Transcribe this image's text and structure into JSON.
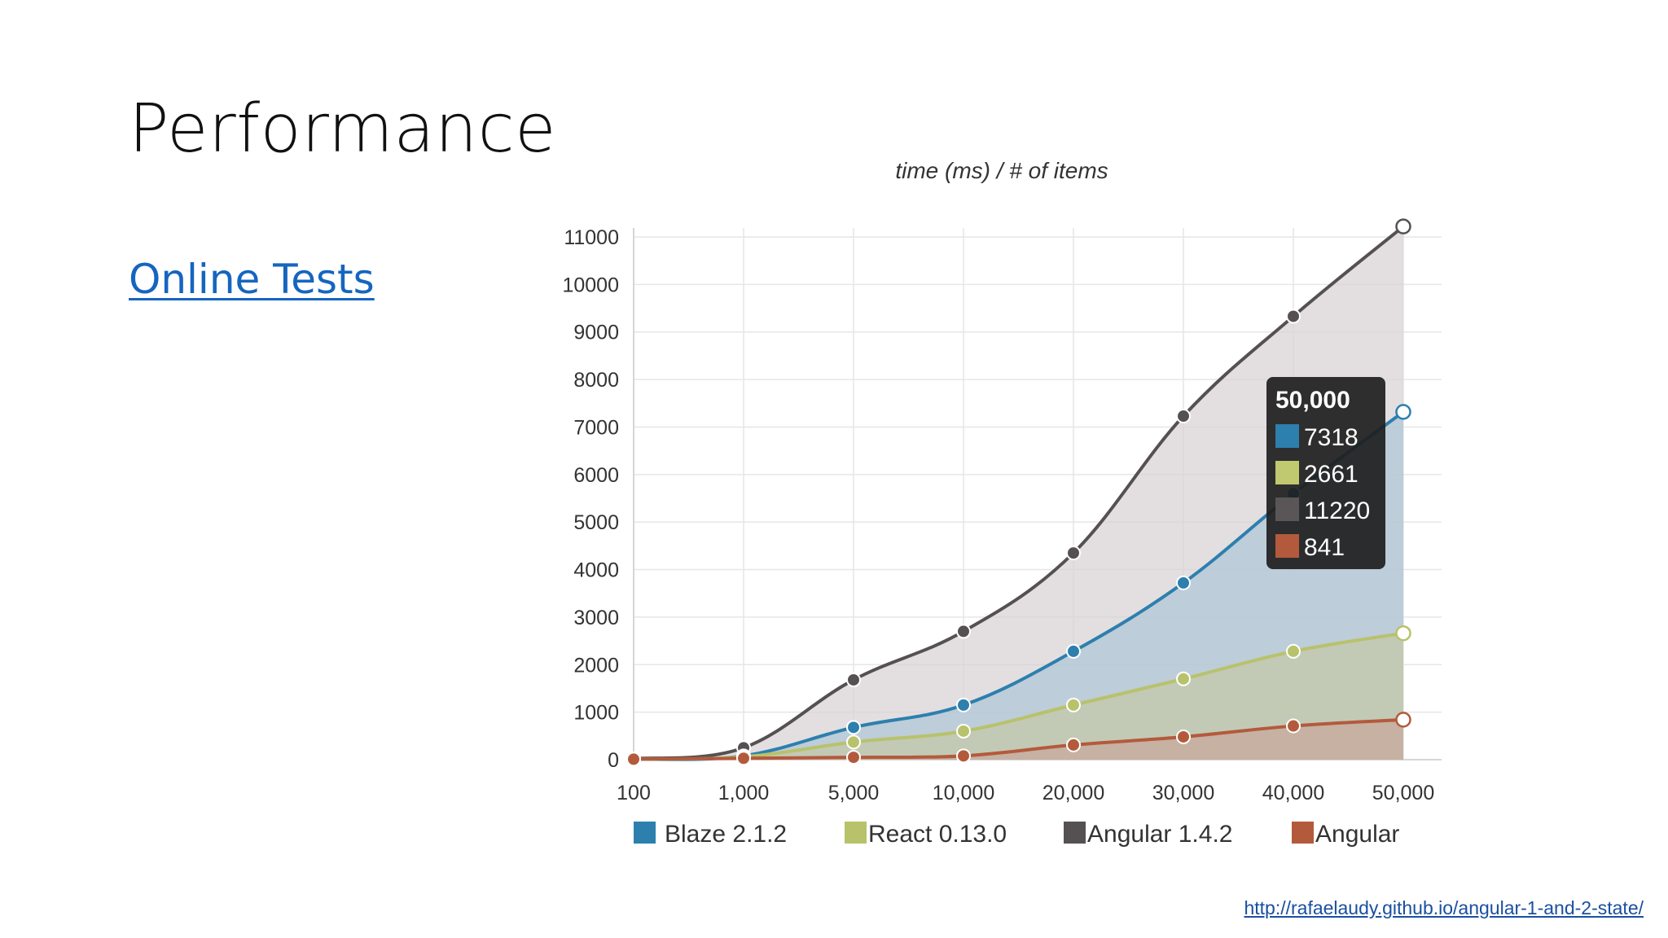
{
  "slide": {
    "title": "Performance",
    "link_text": "Online Tests",
    "source_url": "http://rafaelaudy.github.io/angular-1-and-2-state/"
  },
  "chart_data": {
    "type": "area",
    "title": "time (ms) / # of items",
    "categories": [
      "100",
      "1,000",
      "5,000",
      "10,000",
      "20,000",
      "30,000",
      "40,000",
      "50,000"
    ],
    "y_ticks": [
      0,
      1000,
      2000,
      3000,
      4000,
      5000,
      6000,
      7000,
      8000,
      9000,
      10000,
      11000
    ],
    "ylim": [
      0,
      11000
    ],
    "grid": true,
    "legend_position": "bottom",
    "series": [
      {
        "name": "Angular 1.4.2",
        "color": "#555153",
        "fill": "#d8d3d4",
        "values": [
          20,
          250,
          1680,
          2700,
          4350,
          7230,
          9330,
          11220
        ]
      },
      {
        "name": "Blaze 2.1.2",
        "color": "#2d7fae",
        "fill": "#aec6d6",
        "values": [
          10,
          80,
          680,
          1150,
          2280,
          3720,
          5600,
          7318
        ]
      },
      {
        "name": "React 0.13.0",
        "color": "#b8c26a",
        "fill": "#c3c9a8",
        "values": [
          10,
          60,
          370,
          600,
          1150,
          1700,
          2280,
          2661
        ]
      },
      {
        "name": "Angular",
        "color": "#b45a3c",
        "fill": "#c7a89b",
        "values": [
          10,
          30,
          50,
          80,
          310,
          480,
          710,
          841
        ]
      }
    ],
    "legend_order": [
      "Blaze 2.1.2",
      "React 0.13.0",
      "Angular 1.4.2",
      "Angular"
    ],
    "tooltip": {
      "header": "50,000",
      "rows": [
        {
          "color": "#2d7fae",
          "value": "7318"
        },
        {
          "color": "#c0c96f",
          "value": "2661"
        },
        {
          "color": "#5a5658",
          "value": "11220"
        },
        {
          "color": "#b45a3c",
          "value": "841"
        }
      ]
    }
  }
}
